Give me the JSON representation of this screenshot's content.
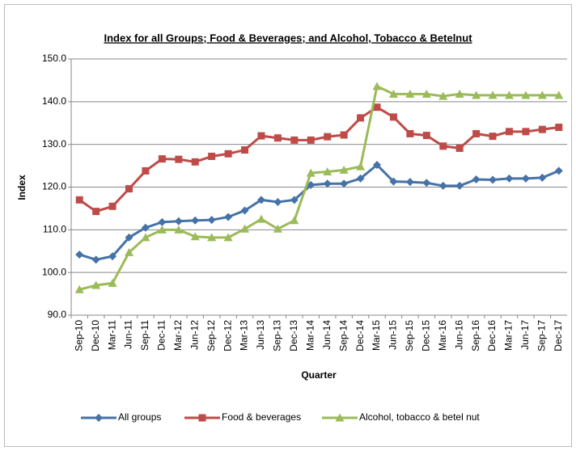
{
  "chart_data": {
    "type": "line",
    "title": "Index for all Groups; Food & Beverages; and Alcohol, Tobacco & Betelnut",
    "x_label": "Quarter",
    "y_label": "Index",
    "categories": [
      "Sep-10",
      "Dec-10",
      "Mar-11",
      "Jun-11",
      "Sep-11",
      "Dec-11",
      "Mar-12",
      "Jun-12",
      "Sep-12",
      "Dec-12",
      "Mar-13",
      "Jun-13",
      "Sep-13",
      "Dec-13",
      "Mar-14",
      "Jun-14",
      "Sep-14",
      "Dec-14",
      "Mar-15",
      "Jun-15",
      "Sep-15",
      "Dec-15",
      "Mar-16",
      "Jun-16",
      "Sep-16",
      "Dec-16",
      "Mar-17",
      "Jun-17",
      "Sep-17",
      "Dec-17"
    ],
    "series": [
      {
        "name": "All groups",
        "color": "#4572a7",
        "marker": "diamond",
        "values": [
          104.2,
          103.0,
          103.8,
          108.2,
          110.5,
          111.8,
          112.0,
          112.2,
          112.3,
          113.0,
          114.5,
          117.0,
          116.5,
          117.0,
          120.5,
          120.8,
          120.8,
          122.0,
          125.2,
          121.3,
          121.2,
          121.0,
          120.3,
          120.3,
          121.8,
          121.7,
          122.0,
          122.0,
          122.2,
          123.8
        ]
      },
      {
        "name": "Food & beverages",
        "color": "#be4b48",
        "marker": "square",
        "values": [
          117.0,
          114.3,
          115.5,
          119.6,
          123.8,
          126.6,
          126.5,
          125.9,
          127.2,
          127.8,
          128.7,
          132.0,
          131.5,
          131.0,
          131.0,
          131.8,
          132.2,
          136.2,
          138.7,
          136.4,
          132.5,
          132.1,
          129.6,
          129.1,
          132.5,
          131.9,
          133.0,
          133.0,
          133.5,
          134.0
        ]
      },
      {
        "name": "Alcohol, tobacco & betel nut",
        "color": "#9bbb59",
        "marker": "triangle",
        "values": [
          96.0,
          97.0,
          97.5,
          104.7,
          108.2,
          110.0,
          110.0,
          108.4,
          108.2,
          108.2,
          110.2,
          112.5,
          110.2,
          112.2,
          123.3,
          123.6,
          124.0,
          124.8,
          143.6,
          141.8,
          141.8,
          141.8,
          141.3,
          141.8,
          141.5,
          141.5,
          141.5,
          141.5,
          141.5,
          141.5
        ]
      }
    ],
    "ylim": [
      90,
      150
    ],
    "yticks": [
      {
        "value": 90,
        "label": "90.0"
      },
      {
        "value": 100,
        "label": "100.0"
      },
      {
        "value": 110,
        "label": "110.0"
      },
      {
        "value": 120,
        "label": "120.0"
      },
      {
        "value": 130,
        "label": "130.0"
      },
      {
        "value": 140,
        "label": "140.0"
      },
      {
        "value": 150,
        "label": "150.0"
      }
    ],
    "grid": true,
    "legend": "bottom"
  }
}
